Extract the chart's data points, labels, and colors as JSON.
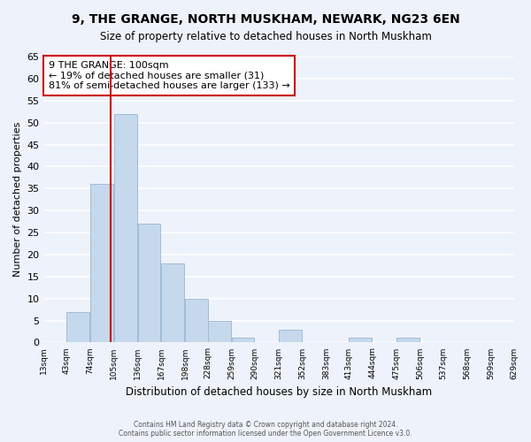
{
  "title": "9, THE GRANGE, NORTH MUSKHAM, NEWARK, NG23 6EN",
  "subtitle": "Size of property relative to detached houses in North Muskham",
  "xlabel": "Distribution of detached houses by size in North Muskham",
  "ylabel": "Number of detached properties",
  "bins": [
    13,
    43,
    74,
    105,
    136,
    167,
    198,
    228,
    259,
    290,
    321,
    352,
    383,
    413,
    444,
    475,
    506,
    537,
    568,
    599,
    629
  ],
  "counts": [
    0,
    7,
    36,
    52,
    27,
    18,
    10,
    5,
    1,
    0,
    3,
    0,
    0,
    1,
    0,
    1,
    0,
    0,
    0,
    0
  ],
  "bar_color": "#c6d9ec",
  "bar_edge_color": "#a0bcd8",
  "vline_x": 100,
  "vline_color": "#cc0000",
  "ylim": [
    0,
    65
  ],
  "yticks": [
    0,
    5,
    10,
    15,
    20,
    25,
    30,
    35,
    40,
    45,
    50,
    55,
    60,
    65
  ],
  "tick_labels": [
    "13sqm",
    "43sqm",
    "74sqm",
    "105sqm",
    "136sqm",
    "167sqm",
    "198sqm",
    "228sqm",
    "259sqm",
    "290sqm",
    "321sqm",
    "352sqm",
    "383sqm",
    "413sqm",
    "444sqm",
    "475sqm",
    "506sqm",
    "537sqm",
    "568sqm",
    "599sqm",
    "629sqm"
  ],
  "annotation_title": "9 THE GRANGE: 100sqm",
  "annotation_line1": "← 19% of detached houses are smaller (31)",
  "annotation_line2": "81% of semi-detached houses are larger (133) →",
  "annotation_box_color": "#ffffff",
  "annotation_box_edge": "#cc0000",
  "footer_line1": "Contains HM Land Registry data © Crown copyright and database right 2024.",
  "footer_line2": "Contains public sector information licensed under the Open Government Licence v3.0.",
  "bg_color": "#eef2fa",
  "grid_color": "#ffffff"
}
